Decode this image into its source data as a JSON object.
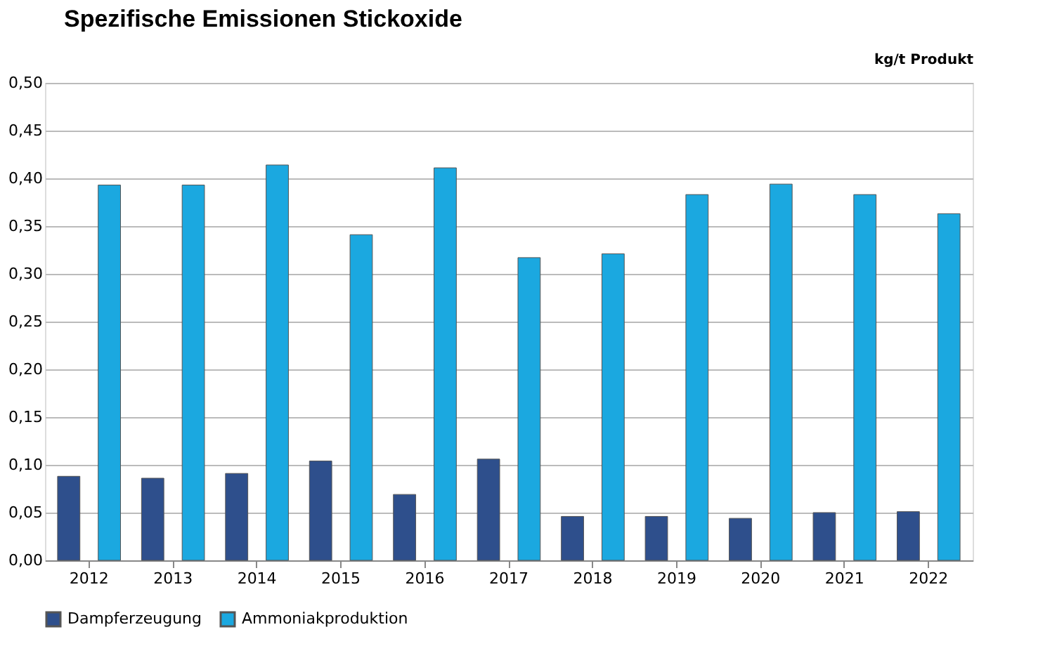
{
  "chart_data": {
    "type": "bar",
    "title": "Spezifische Emissionen Stickoxide",
    "ylabel": "kg/t Produkt",
    "categories": [
      "2012",
      "2013",
      "2014",
      "2015",
      "2016",
      "2017",
      "2018",
      "2019",
      "2020",
      "2021",
      "2022"
    ],
    "series": [
      {
        "name": "Dampferzeugung",
        "color": "#2e4f8c",
        "values": [
          0.088,
          0.086,
          0.091,
          0.104,
          0.069,
          0.106,
          0.046,
          0.046,
          0.044,
          0.05,
          0.051
        ]
      },
      {
        "name": "Ammoniakproduktion",
        "color": "#1ba8e0",
        "values": [
          0.393,
          0.393,
          0.414,
          0.341,
          0.411,
          0.317,
          0.321,
          0.383,
          0.394,
          0.383,
          0.363
        ]
      }
    ],
    "ylim": [
      0,
      0.5
    ],
    "yticks": [
      {
        "value": 0,
        "label": "0,00"
      },
      {
        "value": 0.05,
        "label": "0,05"
      },
      {
        "value": 0.1,
        "label": "0,10"
      },
      {
        "value": 0.15,
        "label": "0,15"
      },
      {
        "value": 0.2,
        "label": "0,20"
      },
      {
        "value": 0.25,
        "label": "0,25"
      },
      {
        "value": 0.3,
        "label": "0,30"
      },
      {
        "value": 0.35,
        "label": "0,35"
      },
      {
        "value": 0.4,
        "label": "0,40"
      },
      {
        "value": 0.45,
        "label": "0,45"
      },
      {
        "value": 0.5,
        "label": "0,50"
      }
    ],
    "grid": "y",
    "legend": "bottom"
  }
}
